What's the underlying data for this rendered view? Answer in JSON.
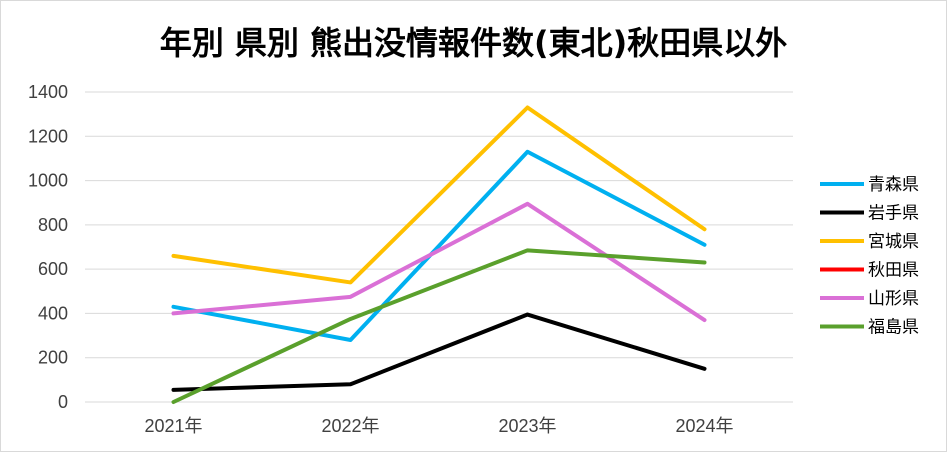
{
  "chart_data": {
    "type": "line",
    "title": "年別 県別 熊出没情報件数(東北)秋田県以外",
    "xlabel": "",
    "ylabel": "",
    "categories": [
      "2021年",
      "2022年",
      "2023年",
      "2024年"
    ],
    "ylim": [
      0,
      1400
    ],
    "yticks": [
      0,
      200,
      400,
      600,
      800,
      1000,
      1200,
      1400
    ],
    "grid": true,
    "legend_position": "right",
    "series": [
      {
        "name": "青森県",
        "color": "#00B0F0",
        "values": [
          430,
          280,
          1130,
          710
        ]
      },
      {
        "name": "岩手県",
        "color": "#000000",
        "values": [
          55,
          80,
          395,
          150
        ]
      },
      {
        "name": "宮城県",
        "color": "#FFC000",
        "values": [
          660,
          540,
          1330,
          780
        ]
      },
      {
        "name": "秋田県",
        "color": "#FF0000",
        "values": [
          null,
          null,
          null,
          null
        ]
      },
      {
        "name": "山形県",
        "color": "#DA70D6",
        "values": [
          400,
          475,
          895,
          370
        ]
      },
      {
        "name": "福島県",
        "color": "#5AA02C",
        "values": [
          0,
          375,
          685,
          630
        ]
      }
    ]
  }
}
